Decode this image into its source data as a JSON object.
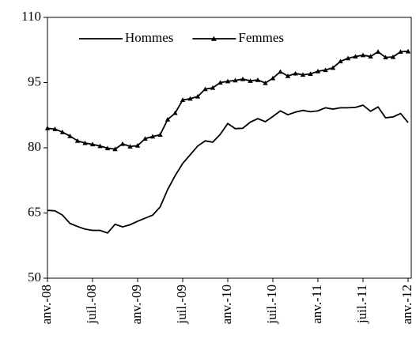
{
  "chart_data": {
    "type": "line",
    "categories": [
      "anv.-08",
      null,
      null,
      null,
      null,
      null,
      "juil.-08",
      null,
      null,
      null,
      null,
      null,
      "anv.-09",
      null,
      null,
      null,
      null,
      null,
      "juil.-09",
      null,
      null,
      null,
      null,
      null,
      "anv.-10",
      null,
      null,
      null,
      null,
      null,
      "juil.-10",
      null,
      null,
      null,
      null,
      null,
      "anv.-11",
      null,
      null,
      null,
      null,
      null,
      "juil.-11",
      null,
      null,
      null,
      null,
      null,
      "anv.-12"
    ],
    "series": [
      {
        "name": "Hommes",
        "color": "#000000",
        "marker": "none",
        "values": [
          65.6,
          65.5,
          64.5,
          62.6,
          61.9,
          61.3,
          61.0,
          61.0,
          60.4,
          62.4,
          61.8,
          62.3,
          63.1,
          63.8,
          64.5,
          66.4,
          70.4,
          73.6,
          76.4,
          78.4,
          80.4,
          81.6,
          81.3,
          83.1,
          85.6,
          84.4,
          84.5,
          85.9,
          86.7,
          86.0,
          87.2,
          88.5,
          87.6,
          88.2,
          88.6,
          88.3,
          88.5,
          89.2,
          88.9,
          89.2,
          89.2,
          89.3,
          89.8,
          88.4,
          89.4,
          86.9,
          87.1,
          87.9,
          85.8
        ]
      },
      {
        "name": "Femmes",
        "color": "#000000",
        "marker": "triangle",
        "values": [
          84.5,
          84.3,
          83.6,
          82.7,
          81.6,
          81.1,
          80.8,
          80.4,
          79.9,
          79.7,
          80.9,
          80.3,
          80.5,
          82.1,
          82.6,
          83.0,
          86.5,
          88.0,
          91.0,
          91.3,
          91.8,
          93.5,
          93.8,
          95.0,
          95.3,
          95.5,
          95.8,
          95.4,
          95.6,
          94.9,
          96.0,
          97.5,
          96.5,
          97.1,
          96.8,
          97.0,
          97.6,
          97.9,
          98.4,
          99.9,
          100.6,
          101.0,
          101.3,
          101.0,
          102.1,
          100.8,
          100.9,
          102.1,
          102.2
        ]
      }
    ],
    "ylim": [
      50,
      110
    ],
    "yticks": [
      50,
      65,
      80,
      95,
      110
    ],
    "legend": "top-left",
    "grid": false
  }
}
